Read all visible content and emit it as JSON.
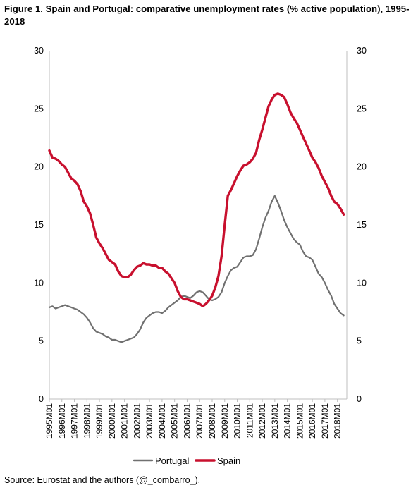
{
  "title": "Figure 1. Spain and Portugal: comparative unemployment rates (% active population), 1995-2018",
  "source": "Source: Eurostat and the authors (@_combarro_).",
  "colors": {
    "portugal": "#707070",
    "spain": "#c8102e",
    "axis": "#bfbfbf"
  },
  "chart_data": {
    "type": "line",
    "title": "Figure 1. Spain and Portugal: comparative unemployment rates (% active population), 1995-2018",
    "xlabel": "",
    "ylabel": "",
    "ylim": [
      0,
      30
    ],
    "yticks": [
      0,
      5,
      10,
      15,
      20,
      25,
      30
    ],
    "y2ticks": [
      0,
      5,
      10,
      15,
      20,
      25,
      30
    ],
    "grid": false,
    "legend": "bottom",
    "x_labels": [
      "1995M01",
      "1996M01",
      "1997M01",
      "1998M01",
      "1999M01",
      "2000M01",
      "2001M01",
      "2002M01",
      "2003M01",
      "2004M01",
      "2005M01",
      "2006M01",
      "2007M01",
      "2008M01",
      "2009M01",
      "2010M01",
      "2011M01",
      "2012M01",
      "2013M01",
      "2014M01",
      "2015M01",
      "2016M01",
      "2017M01",
      "2018M01"
    ],
    "x": [
      1995.0,
      1995.25,
      1995.5,
      1995.75,
      1996.0,
      1996.25,
      1996.5,
      1996.75,
      1997.0,
      1997.25,
      1997.5,
      1997.75,
      1998.0,
      1998.25,
      1998.5,
      1998.75,
      1999.0,
      1999.25,
      1999.5,
      1999.75,
      2000.0,
      2000.25,
      2000.5,
      2000.75,
      2001.0,
      2001.25,
      2001.5,
      2001.75,
      2002.0,
      2002.25,
      2002.5,
      2002.75,
      2003.0,
      2003.25,
      2003.5,
      2003.75,
      2004.0,
      2004.25,
      2004.5,
      2004.75,
      2005.0,
      2005.25,
      2005.5,
      2005.75,
      2006.0,
      2006.25,
      2006.5,
      2006.75,
      2007.0,
      2007.25,
      2007.5,
      2007.75,
      2008.0,
      2008.25,
      2008.5,
      2008.75,
      2009.0,
      2009.25,
      2009.5,
      2009.75,
      2010.0,
      2010.25,
      2010.5,
      2010.75,
      2011.0,
      2011.25,
      2011.5,
      2011.75,
      2012.0,
      2012.25,
      2012.5,
      2012.75,
      2013.0,
      2013.25,
      2013.5,
      2013.75,
      2014.0,
      2014.25,
      2014.5,
      2014.75,
      2015.0,
      2015.25,
      2015.5,
      2015.75,
      2016.0,
      2016.25,
      2016.5,
      2016.75,
      2017.0,
      2017.25,
      2017.5,
      2017.75,
      2018.0,
      2018.25,
      2018.5
    ],
    "series": [
      {
        "name": "Portugal",
        "values": [
          7.9,
          8.0,
          7.8,
          7.9,
          8.0,
          8.1,
          8.0,
          7.9,
          7.8,
          7.7,
          7.5,
          7.3,
          7.0,
          6.6,
          6.1,
          5.8,
          5.7,
          5.6,
          5.4,
          5.3,
          5.1,
          5.1,
          5.0,
          4.9,
          5.0,
          5.1,
          5.2,
          5.3,
          5.6,
          6.0,
          6.6,
          7.0,
          7.2,
          7.4,
          7.5,
          7.5,
          7.4,
          7.6,
          7.9,
          8.1,
          8.3,
          8.5,
          8.8,
          8.9,
          8.8,
          8.7,
          8.9,
          9.2,
          9.3,
          9.2,
          8.9,
          8.6,
          8.5,
          8.6,
          8.8,
          9.2,
          10.0,
          10.6,
          11.1,
          11.3,
          11.4,
          11.8,
          12.2,
          12.3,
          12.3,
          12.4,
          12.9,
          13.8,
          14.8,
          15.6,
          16.2,
          17.0,
          17.5,
          16.9,
          16.2,
          15.4,
          14.8,
          14.3,
          13.8,
          13.5,
          13.3,
          12.7,
          12.3,
          12.2,
          12.0,
          11.4,
          10.8,
          10.5,
          10.0,
          9.4,
          8.9,
          8.2,
          7.8,
          7.4,
          7.2
        ]
      },
      {
        "name": "Spain",
        "values": [
          21.4,
          20.8,
          20.7,
          20.5,
          20.2,
          20.0,
          19.5,
          19.0,
          18.8,
          18.5,
          17.9,
          17.0,
          16.6,
          16.0,
          15.0,
          13.9,
          13.4,
          13.0,
          12.5,
          12.0,
          11.8,
          11.6,
          11.0,
          10.6,
          10.5,
          10.5,
          10.7,
          11.1,
          11.4,
          11.5,
          11.7,
          11.6,
          11.6,
          11.5,
          11.5,
          11.3,
          11.3,
          11.0,
          10.8,
          10.4,
          10.0,
          9.3,
          8.8,
          8.6,
          8.6,
          8.5,
          8.4,
          8.3,
          8.2,
          8.0,
          8.2,
          8.5,
          8.9,
          9.6,
          10.6,
          12.3,
          15.0,
          17.5,
          18.0,
          18.6,
          19.2,
          19.7,
          20.1,
          20.2,
          20.4,
          20.7,
          21.2,
          22.3,
          23.2,
          24.2,
          25.2,
          25.8,
          26.2,
          26.3,
          26.2,
          26.0,
          25.4,
          24.7,
          24.2,
          23.8,
          23.2,
          22.6,
          22.0,
          21.4,
          20.8,
          20.4,
          19.9,
          19.2,
          18.7,
          18.2,
          17.5,
          17.0,
          16.8,
          16.4,
          15.9
        ]
      }
    ]
  }
}
